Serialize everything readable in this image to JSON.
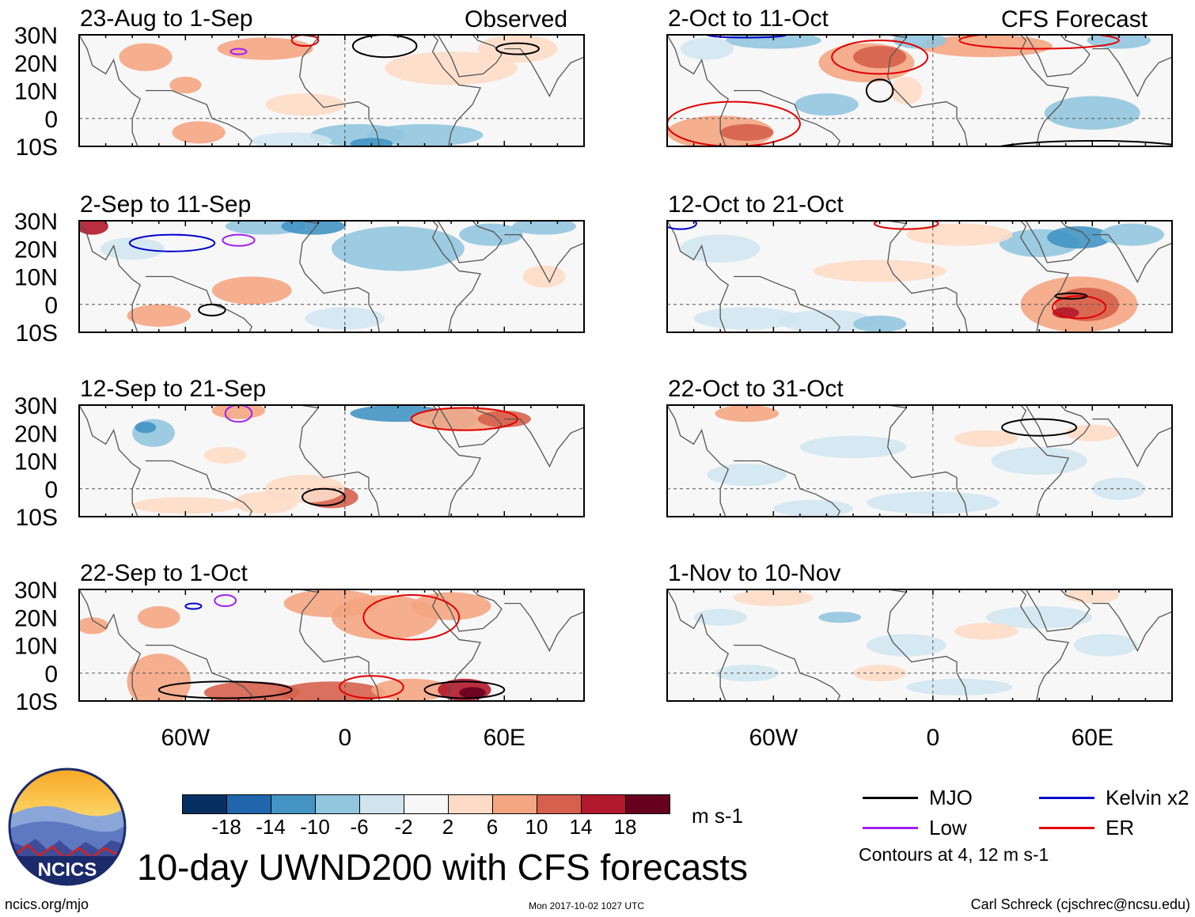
{
  "header": {
    "observed_label": "Observed",
    "forecast_label": "CFS Forecast"
  },
  "title": "10-day UWND200 with CFS forecasts",
  "units": "m s-1",
  "chart_data": {
    "type": "heatmap",
    "variable": "UWND200 anomaly",
    "xlabel": "",
    "ylabel": "",
    "xlim": [
      -100,
      90
    ],
    "ylim": [
      -10,
      30
    ],
    "x_ticks": [
      {
        "value": -60,
        "label": "60W"
      },
      {
        "value": 0,
        "label": "0"
      },
      {
        "value": 60,
        "label": "60E"
      }
    ],
    "y_ticks": [
      {
        "value": 30,
        "label": "30N"
      },
      {
        "value": 20,
        "label": "20N"
      },
      {
        "value": 10,
        "label": "10N"
      },
      {
        "value": 0,
        "label": "0"
      },
      {
        "value": -10,
        "label": "10S"
      }
    ],
    "colorbar": {
      "levels": [
        "-18",
        "-14",
        "-10",
        "-6",
        "-2",
        "2",
        "6",
        "10",
        "14",
        "18"
      ],
      "colors": [
        "#053061",
        "#2166ac",
        "#4393c3",
        "#92c5de",
        "#d1e5f0",
        "#f7f7f7",
        "#fddbc7",
        "#f4a582",
        "#d6604d",
        "#b2182b",
        "#67001f"
      ]
    },
    "panels": [
      {
        "title": "23-Aug to 1-Sep",
        "type": "observed"
      },
      {
        "title": "2-Sep to 11-Sep",
        "type": "observed"
      },
      {
        "title": "12-Sep to 21-Sep",
        "type": "observed"
      },
      {
        "title": "22-Sep to 1-Oct",
        "type": "observed"
      },
      {
        "title": "2-Oct to 11-Oct",
        "type": "forecast"
      },
      {
        "title": "12-Oct to 21-Oct",
        "type": "forecast"
      },
      {
        "title": "22-Oct to 31-Oct",
        "type": "forecast"
      },
      {
        "title": "1-Nov to 10-Nov",
        "type": "forecast"
      }
    ]
  },
  "legend": {
    "items": [
      {
        "label": "MJO",
        "color": "#000000"
      },
      {
        "label": "Kelvin x2",
        "color": "#0000cc"
      },
      {
        "label": "Low",
        "color": "#a020f0"
      },
      {
        "label": "ER",
        "color": "#e00000"
      }
    ],
    "note": "Contours at 4, 12 m s-1"
  },
  "logo_text": "NCICS",
  "footer": {
    "left": "ncics.org/mjo",
    "timestamp": "Mon 2017-10-02 1027 UTC",
    "author": "Carl Schreck (cjschrec@ncsu.edu)"
  }
}
